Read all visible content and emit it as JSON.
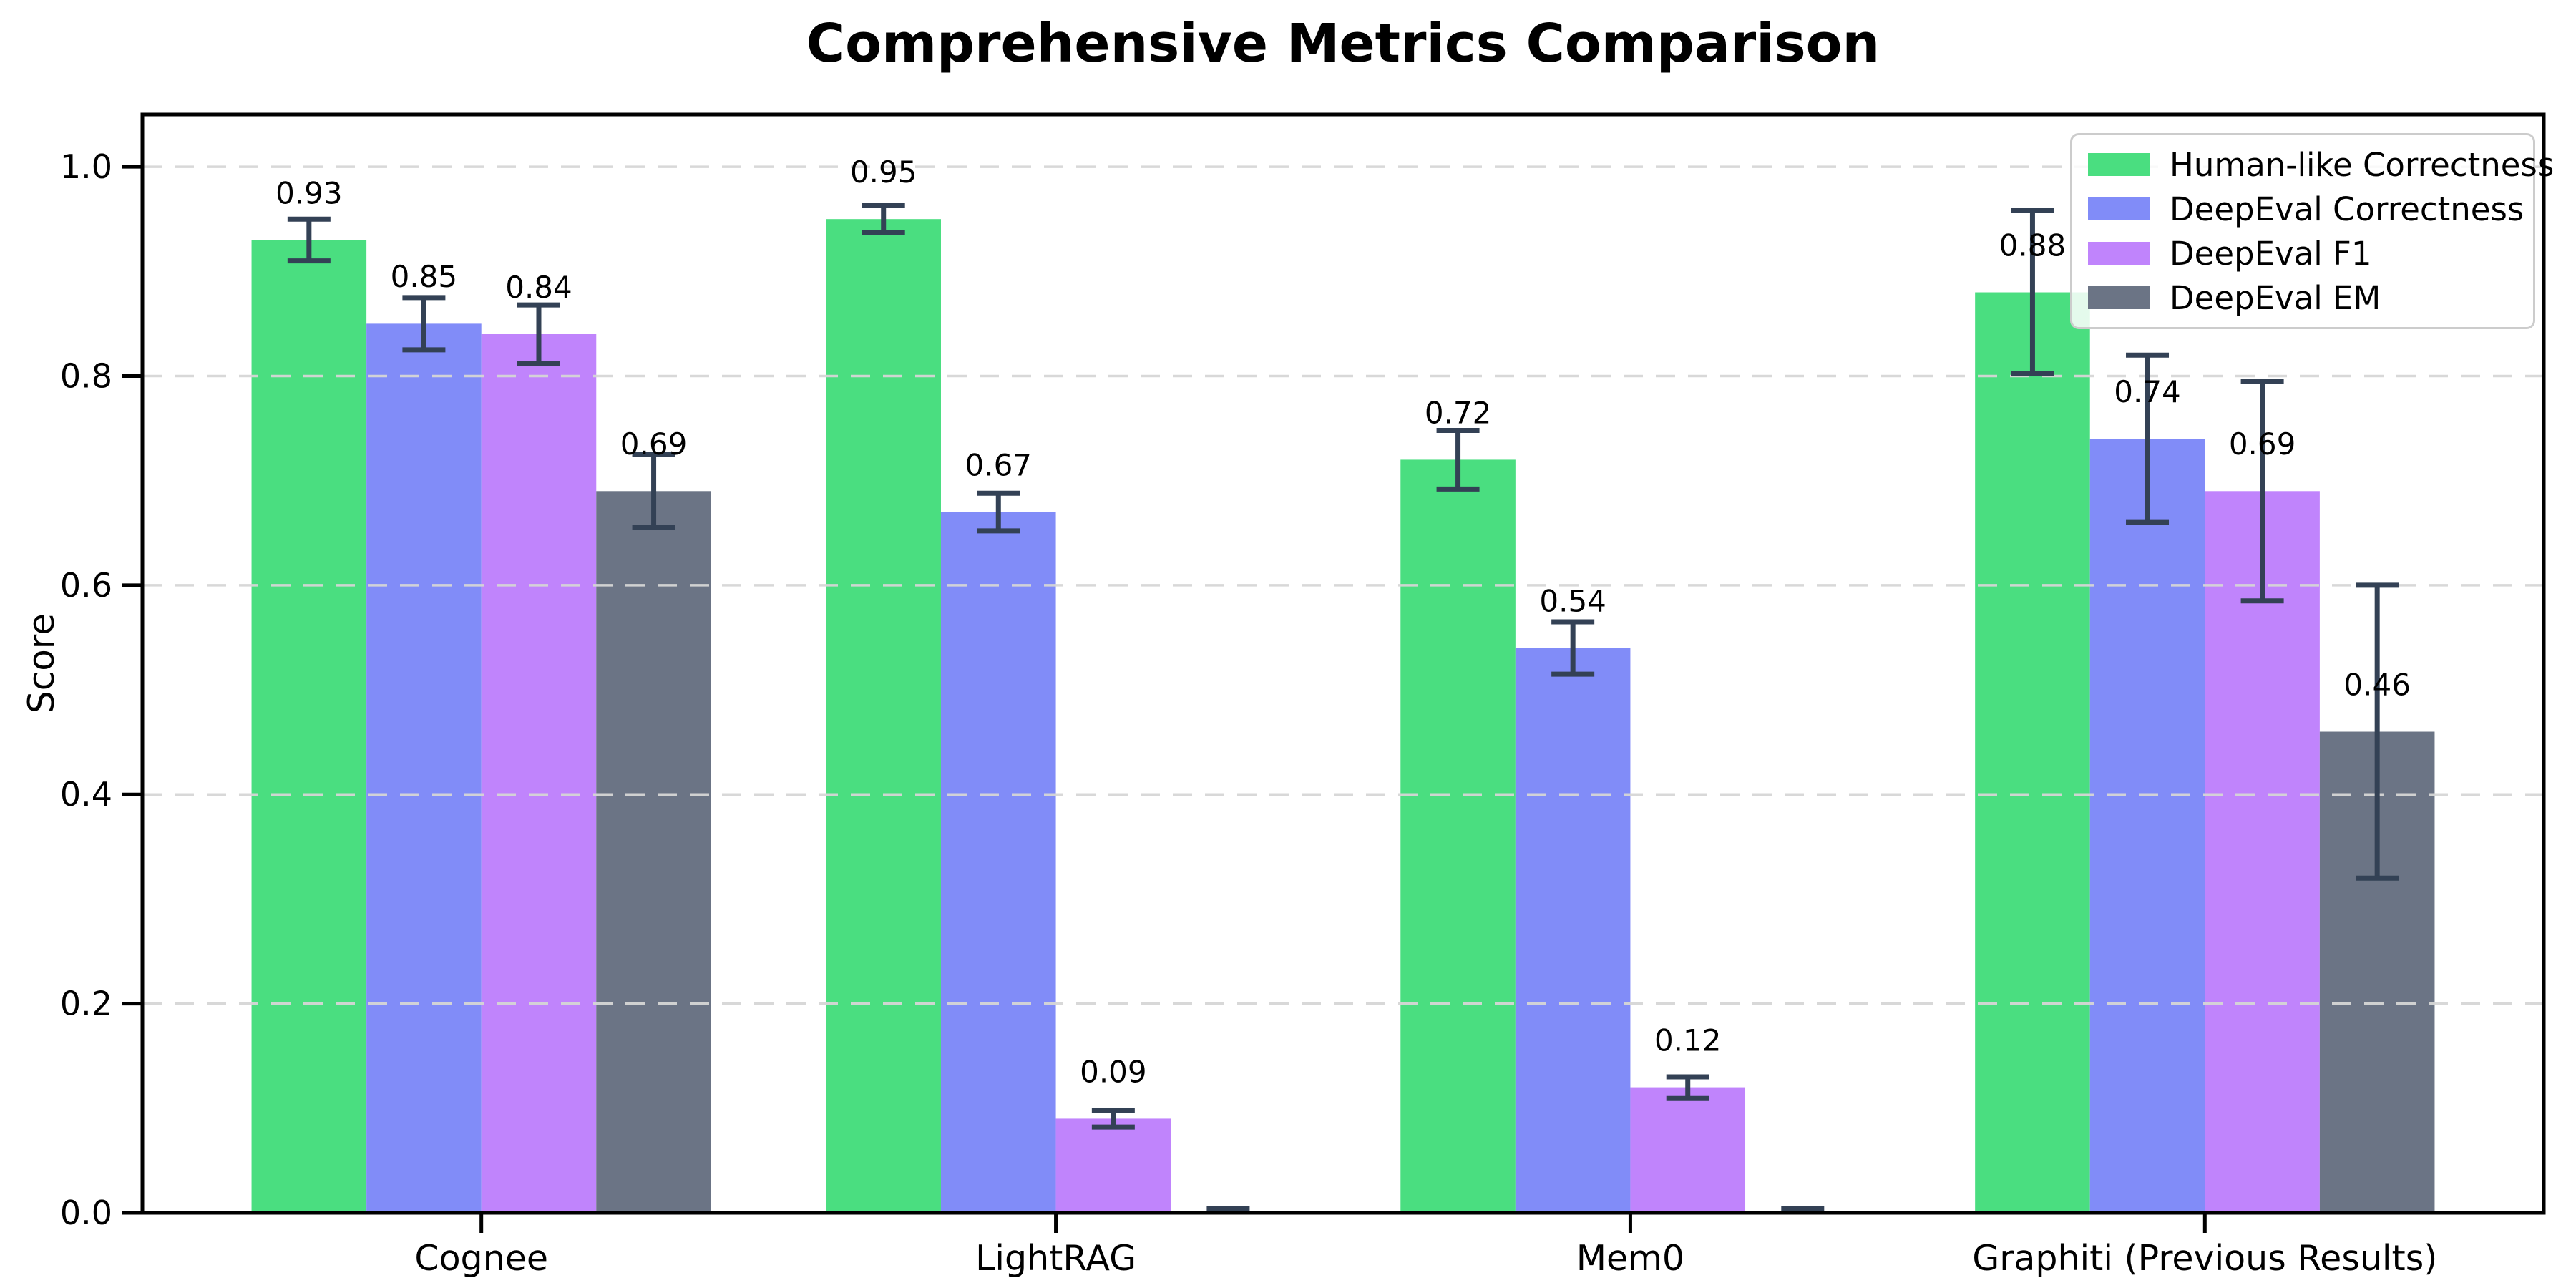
{
  "title": "Comprehensive Metrics Comparison",
  "chart_data": {
    "type": "bar",
    "title": "Comprehensive Metrics Comparison",
    "xlabel": "",
    "ylabel": "Score",
    "ylim": [
      0,
      1.05
    ],
    "yticks": [
      "0.0",
      "0.2",
      "0.4",
      "0.6",
      "0.8",
      "1.0"
    ],
    "grid": "horizontal dashed",
    "grid_on": true,
    "legend_position": "upper right",
    "categories": [
      "Cognee",
      "LightRAG",
      "Mem0",
      "Graphiti (Previous Results)"
    ],
    "series": [
      {
        "name": "Human-like Correctness",
        "color": "#4ade80",
        "values": [
          0.93,
          0.95,
          0.72,
          0.88
        ],
        "errors": [
          0.02,
          0.013,
          0.028,
          0.078
        ],
        "labels": [
          "0.93",
          "0.95",
          "0.72",
          "0.88"
        ]
      },
      {
        "name": "DeepEval Correctness",
        "color": "#818cf8",
        "values": [
          0.85,
          0.67,
          0.54,
          0.74
        ],
        "errors": [
          0.025,
          0.018,
          0.025,
          0.08
        ],
        "labels": [
          "0.85",
          "0.67",
          "0.54",
          "0.74"
        ]
      },
      {
        "name": "DeepEval F1",
        "color": "#c084fc",
        "values": [
          0.84,
          0.09,
          0.12,
          0.69
        ],
        "errors": [
          0.028,
          0.008,
          0.01,
          0.105
        ],
        "labels": [
          "0.84",
          "0.09",
          "0.12",
          "0.69"
        ]
      },
      {
        "name": "DeepEval EM",
        "color": "#6b7485",
        "values": [
          0.69,
          0.0,
          0.0,
          0.46
        ],
        "errors": [
          0.035,
          0.004,
          0.004,
          0.14
        ],
        "labels": [
          "0.69",
          "",
          "",
          "0.46"
        ]
      }
    ],
    "error_bar_color": "#334155",
    "axis_color": "#000000",
    "grid_color": "#d6d6d6",
    "background_color": "#ffffff"
  }
}
